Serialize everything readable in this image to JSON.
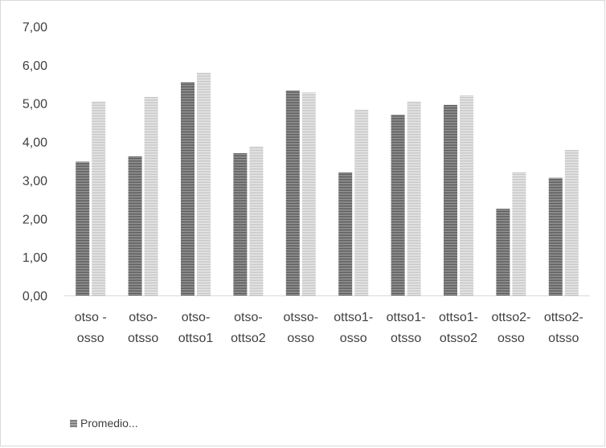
{
  "chart_data": {
    "type": "bar",
    "categories": [
      [
        "otso -",
        "osso"
      ],
      [
        "otso-",
        "otsso"
      ],
      [
        "otso-",
        "ottso1"
      ],
      [
        "otso-",
        "ottso2"
      ],
      [
        "otsso-",
        "osso"
      ],
      [
        "ottso1-",
        "osso"
      ],
      [
        "ottso1-",
        "otsso"
      ],
      [
        "ottso1-",
        "otsso2"
      ],
      [
        "ottso2-",
        "osso"
      ],
      [
        "ottso2-",
        "otsso"
      ]
    ],
    "series": [
      {
        "values": [
          3.48,
          3.62,
          5.55,
          3.7,
          5.33,
          3.2,
          4.7,
          4.96,
          2.26,
          3.06
        ],
        "color": "#7f7f7f"
      },
      {
        "values": [
          5.05,
          5.17,
          5.8,
          3.88,
          5.28,
          4.84,
          5.05,
          5.2,
          3.21,
          3.79
        ],
        "color": "#c8c8c8"
      }
    ],
    "ylim": [
      0,
      7
    ],
    "yticks": [
      "0,00",
      "1,00",
      "2,00",
      "3,00",
      "4,00",
      "5,00",
      "6,00",
      "7,00"
    ],
    "grid": false,
    "legend_position": "bottom-left"
  },
  "legend": {
    "label": "Promedio..."
  }
}
